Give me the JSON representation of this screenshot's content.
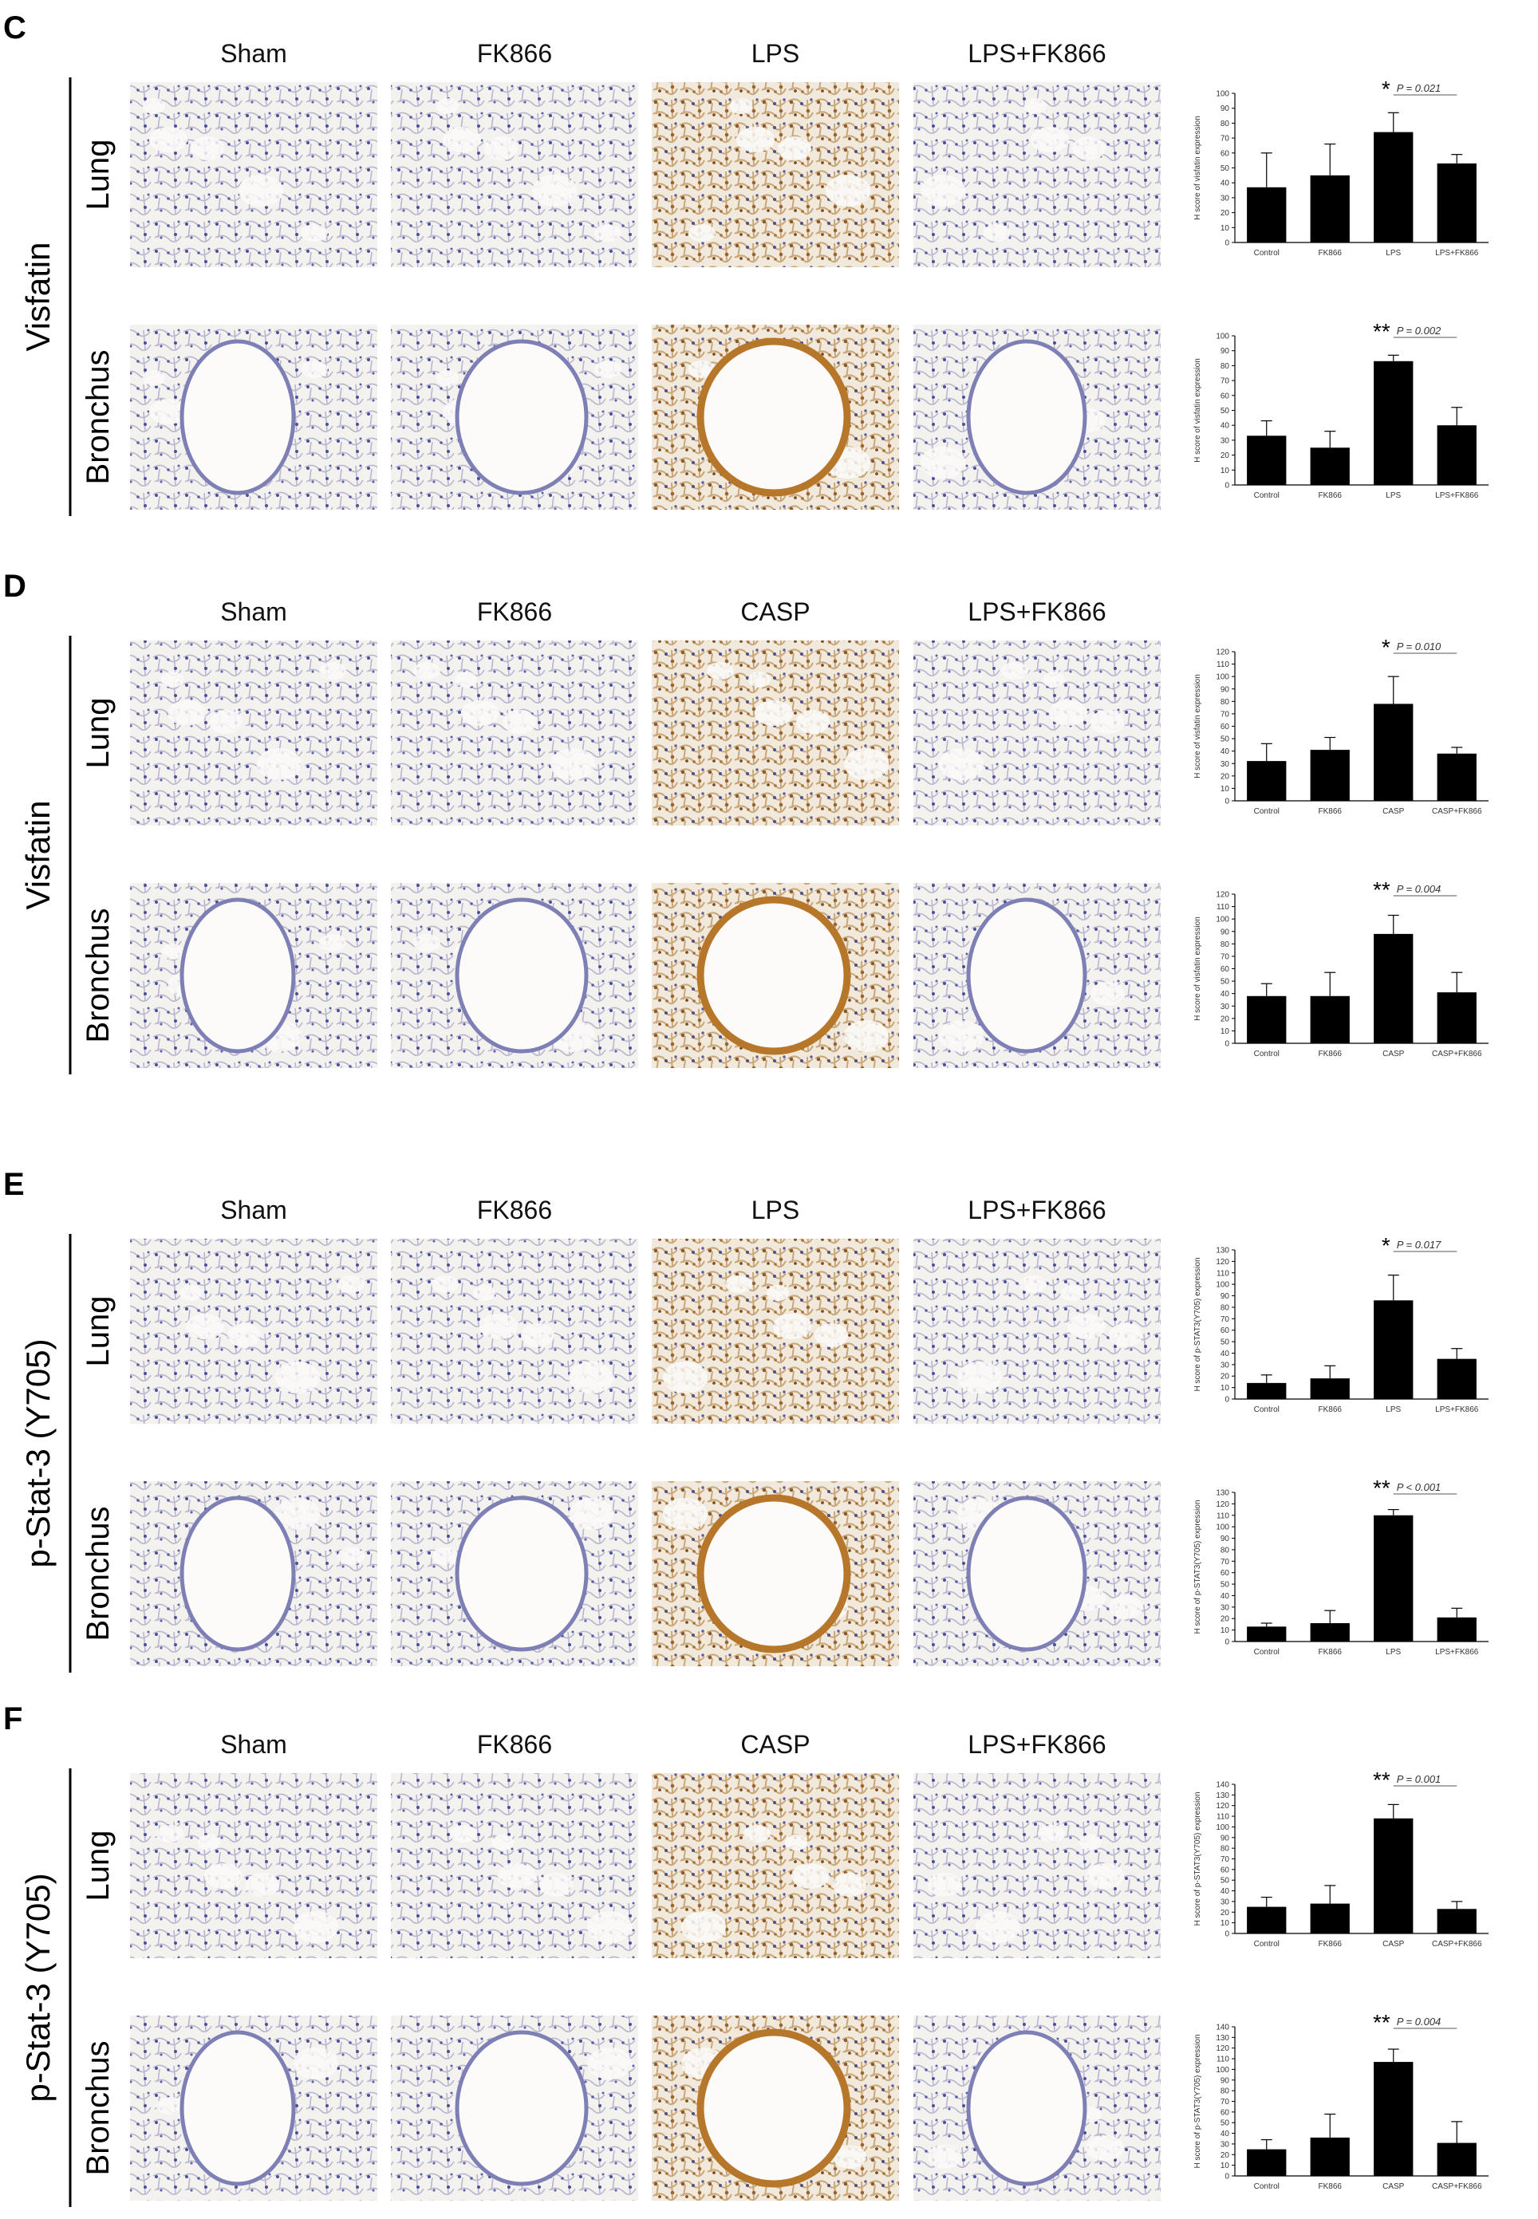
{
  "figure": {
    "panels": [
      {
        "label": "C",
        "columns": [
          "Sham",
          "FK866",
          "LPS",
          "LPS+FK866"
        ],
        "marker": "Visfatin",
        "rows": [
          "Lung",
          "Bronchus"
        ]
      },
      {
        "label": "D",
        "columns": [
          "Sham",
          "FK866",
          "CASP",
          "LPS+FK866"
        ],
        "marker": "Visfatin",
        "rows": [
          "Lung",
          "Bronchus"
        ]
      },
      {
        "label": "E",
        "columns": [
          "Sham",
          "FK866",
          "LPS",
          "LPS+FK866"
        ],
        "marker": "p-Stat-3 (Y705)",
        "rows": [
          "Lung",
          "Bronchus"
        ]
      },
      {
        "label": "F",
        "columns": [
          "Sham",
          "FK866",
          "CASP",
          "LPS+FK866"
        ],
        "marker": "p-Stat-3 (Y705)",
        "rows": [
          "Lung",
          "Bronchus"
        ]
      }
    ]
  },
  "chart_data": [
    {
      "type": "bar",
      "y_label": "H score of visfatin expression",
      "categories": [
        "Control",
        "FK866",
        "LPS",
        "LPS+FK866"
      ],
      "values": [
        37,
        45,
        74,
        53
      ],
      "errors": [
        23,
        21,
        13,
        6
      ],
      "color": "#000000",
      "ylim": [
        0,
        100
      ],
      "yticks": [
        0,
        10,
        20,
        30,
        40,
        50,
        60,
        70,
        80,
        90,
        100
      ],
      "significance": "*",
      "p_label": "P = 0.021"
    },
    {
      "type": "bar",
      "y_label": "H score of visfatin expression",
      "categories": [
        "Control",
        "FK866",
        "LPS",
        "LPS+FK866"
      ],
      "values": [
        33,
        25,
        83,
        40
      ],
      "errors": [
        10,
        11,
        4,
        12
      ],
      "color": "#000000",
      "ylim": [
        0,
        100
      ],
      "yticks": [
        0,
        10,
        20,
        30,
        40,
        50,
        60,
        70,
        80,
        90,
        100
      ],
      "significance": "**",
      "p_label": "P = 0.002"
    },
    {
      "type": "bar",
      "y_label": "H score of visfatin expression",
      "categories": [
        "Control",
        "FK866",
        "CASP",
        "CASP+FK866"
      ],
      "values": [
        32,
        41,
        78,
        38
      ],
      "errors": [
        14,
        10,
        22,
        5
      ],
      "color": "#000000",
      "ylim": [
        0,
        120
      ],
      "yticks": [
        0,
        10,
        20,
        30,
        40,
        50,
        60,
        70,
        80,
        90,
        100,
        110,
        120
      ],
      "significance": "*",
      "p_label": "P = 0.010"
    },
    {
      "type": "bar",
      "y_label": "H score of visfatin expression",
      "categories": [
        "Control",
        "FK866",
        "CASP",
        "CASP+FK866"
      ],
      "values": [
        38,
        38,
        88,
        41
      ],
      "errors": [
        10,
        19,
        15,
        16
      ],
      "color": "#000000",
      "ylim": [
        0,
        120
      ],
      "yticks": [
        0,
        10,
        20,
        30,
        40,
        50,
        60,
        70,
        80,
        90,
        100,
        110,
        120
      ],
      "significance": "**",
      "p_label": "P = 0.004"
    },
    {
      "type": "bar",
      "y_label": "H score of p-STAT3(Y705) expression",
      "categories": [
        "Control",
        "FK866",
        "LPS",
        "LPS+FK866"
      ],
      "values": [
        14,
        18,
        86,
        35
      ],
      "errors": [
        7,
        11,
        22,
        9
      ],
      "color": "#000000",
      "ylim": [
        0,
        130
      ],
      "yticks": [
        0,
        10,
        20,
        30,
        40,
        50,
        60,
        70,
        80,
        90,
        100,
        110,
        120,
        130
      ],
      "significance": "*",
      "p_label": "P = 0.017"
    },
    {
      "type": "bar",
      "y_label": "H score of p-STAT3(Y705) expression",
      "categories": [
        "Control",
        "FK866",
        "LPS",
        "LPS+FK866"
      ],
      "values": [
        13,
        16,
        110,
        21
      ],
      "errors": [
        3,
        11,
        5,
        8
      ],
      "color": "#000000",
      "ylim": [
        0,
        130
      ],
      "yticks": [
        0,
        10,
        20,
        30,
        40,
        50,
        60,
        70,
        80,
        90,
        100,
        110,
        120,
        130
      ],
      "significance": "**",
      "p_label": "P < 0.001"
    },
    {
      "type": "bar",
      "y_label": "H score of p-STAT3(Y705) expression",
      "categories": [
        "Control",
        "FK866",
        "CASP",
        "CASP+FK866"
      ],
      "values": [
        25,
        28,
        108,
        23
      ],
      "errors": [
        9,
        17,
        13,
        7
      ],
      "color": "#000000",
      "ylim": [
        0,
        140
      ],
      "yticks": [
        0,
        10,
        20,
        30,
        40,
        50,
        60,
        70,
        80,
        90,
        100,
        110,
        120,
        130,
        140
      ],
      "significance": "**",
      "p_label": "P = 0.001"
    },
    {
      "type": "bar",
      "y_label": "H score of p-STAT3(Y705) expression",
      "categories": [
        "Control",
        "FK866",
        "CASP",
        "CASP+FK866"
      ],
      "values": [
        25,
        36,
        107,
        31
      ],
      "errors": [
        9,
        22,
        12,
        20
      ],
      "color": "#000000",
      "ylim": [
        0,
        140
      ],
      "yticks": [
        0,
        10,
        20,
        30,
        40,
        50,
        60,
        70,
        80,
        90,
        100,
        110,
        120,
        130,
        140
      ],
      "significance": "**",
      "p_label": "P = 0.004"
    }
  ]
}
